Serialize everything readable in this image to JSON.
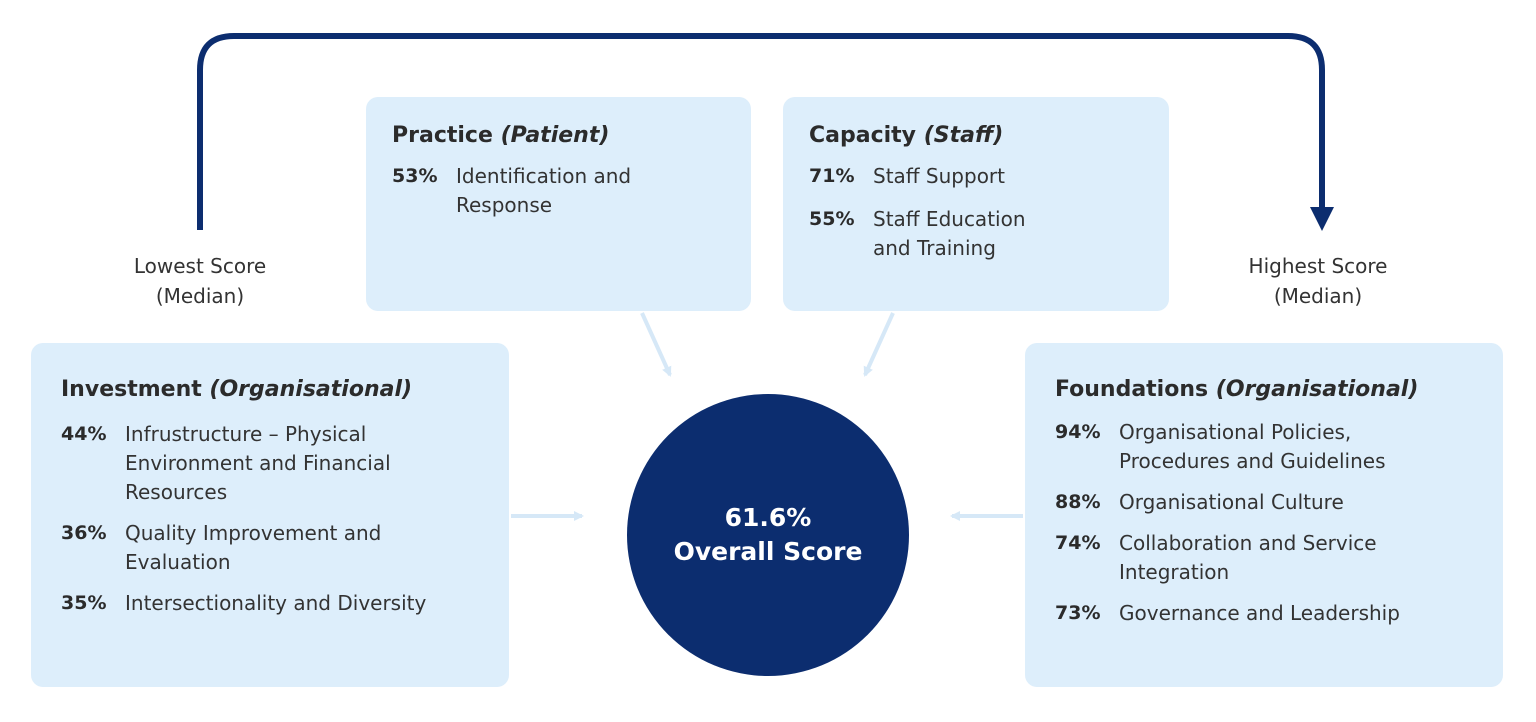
{
  "practice": {
    "title": "Practice",
    "subtitle": "(Patient)",
    "items": [
      {
        "pct": "53%",
        "label": "Identification and Response"
      }
    ]
  },
  "capacity": {
    "title": "Capacity",
    "subtitle": "(Staff)",
    "items": [
      {
        "pct": "71%",
        "label": "Staff Support"
      },
      {
        "pct": "55%",
        "label": "Staff Education and Training"
      }
    ]
  },
  "investment": {
    "title": "Investment",
    "subtitle": "(Organisational)",
    "items": [
      {
        "pct": "44%",
        "label": "Infrustructure – Physical Environment and Financial Resources"
      },
      {
        "pct": "36%",
        "label": "Quality Improvement and Evaluation"
      },
      {
        "pct": "35%",
        "label": "Intersectionality and Diversity"
      }
    ]
  },
  "foundations": {
    "title": "Foundations",
    "subtitle": "(Organisational)",
    "items": [
      {
        "pct": "94%",
        "label": "Organisational Policies, Procedures and Guidelines"
      },
      {
        "pct": "88%",
        "label": "Organisational Culture"
      },
      {
        "pct": "74%",
        "label": "Collaboration and Service Integration"
      },
      {
        "pct": "73%",
        "label": "Governance and Leadership"
      }
    ]
  },
  "lowest_label": {
    "line1": "Lowest Score",
    "line2": "(Median)"
  },
  "highest_label": {
    "line1": "Highest Score",
    "line2": "(Median)"
  },
  "overall": {
    "value": "61.6%",
    "label": "Overall Score"
  },
  "colors": {
    "accent": "#0c2d6f",
    "card": "#ddeefb",
    "connector": "#d6e8f7"
  }
}
